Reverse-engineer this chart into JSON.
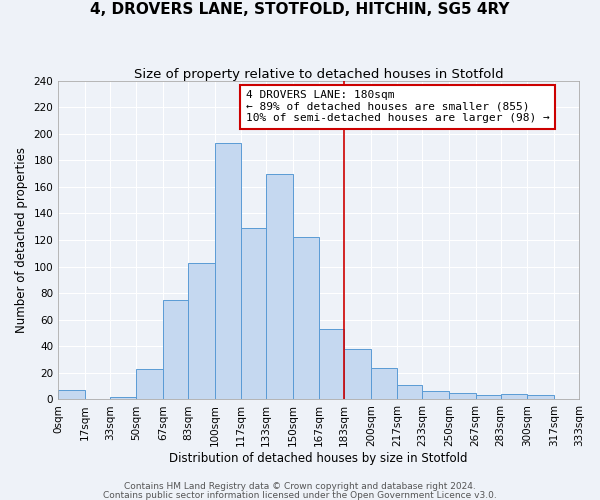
{
  "title": "4, DROVERS LANE, STOTFOLD, HITCHIN, SG5 4RY",
  "subtitle": "Size of property relative to detached houses in Stotfold",
  "xlabel": "Distribution of detached houses by size in Stotfold",
  "ylabel": "Number of detached properties",
  "bin_labels": [
    "0sqm",
    "17sqm",
    "33sqm",
    "50sqm",
    "67sqm",
    "83sqm",
    "100sqm",
    "117sqm",
    "133sqm",
    "150sqm",
    "167sqm",
    "183sqm",
    "200sqm",
    "217sqm",
    "233sqm",
    "250sqm",
    "267sqm",
    "283sqm",
    "300sqm",
    "317sqm",
    "333sqm"
  ],
  "bin_edges": [
    0,
    17,
    33,
    50,
    67,
    83,
    100,
    117,
    133,
    150,
    167,
    183,
    200,
    217,
    233,
    250,
    267,
    283,
    300,
    317,
    333
  ],
  "counts": [
    7,
    0,
    2,
    23,
    75,
    103,
    193,
    129,
    170,
    122,
    53,
    38,
    24,
    11,
    6,
    5,
    3,
    4,
    3,
    0
  ],
  "bar_facecolor": "#c5d8f0",
  "bar_edgecolor": "#5a9bd5",
  "vline_x": 183,
  "vline_color": "#cc0000",
  "annotation_line1": "4 DROVERS LANE: 180sqm",
  "annotation_line2": "← 89% of detached houses are smaller (855)",
  "annotation_line3": "10% of semi-detached houses are larger (98) →",
  "annotation_box_edgecolor": "#cc0000",
  "ylim": [
    0,
    240
  ],
  "yticks": [
    0,
    20,
    40,
    60,
    80,
    100,
    120,
    140,
    160,
    180,
    200,
    220,
    240
  ],
  "footer1": "Contains HM Land Registry data © Crown copyright and database right 2024.",
  "footer2": "Contains public sector information licensed under the Open Government Licence v3.0.",
  "background_color": "#eef2f8",
  "grid_color": "#ffffff",
  "title_fontsize": 11,
  "subtitle_fontsize": 9.5,
  "axis_label_fontsize": 8.5,
  "tick_fontsize": 7.5,
  "annotation_fontsize": 8,
  "footer_fontsize": 6.5
}
